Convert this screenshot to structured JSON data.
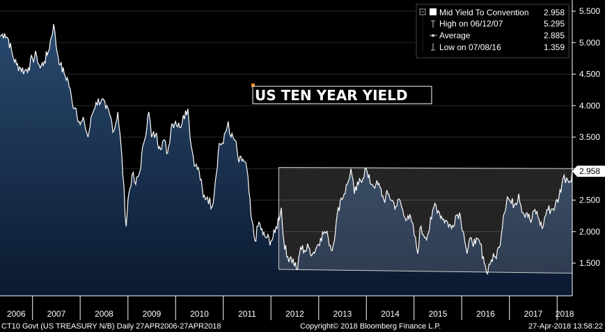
{
  "chart_data": {
    "type": "line",
    "title": "US TEN YEAR YIELD",
    "ylim": [
      1.0,
      5.6
    ],
    "y_ticks": [
      "5.500",
      "5.000",
      "4.500",
      "4.000",
      "3.500",
      "3.000",
      "2.500",
      "2.000",
      "1.500"
    ],
    "last_value_label": "2.958",
    "x_ticks": [
      "2006",
      "2007",
      "2008",
      "2009",
      "2010",
      "2011",
      "2012",
      "2013",
      "2014",
      "2015",
      "2016",
      "2017",
      "2018"
    ],
    "x_range": [
      "2006-04-27",
      "2018-04-27"
    ],
    "series": [
      {
        "name": "Mid Yield To Convention",
        "color": "#ffffff",
        "fill_top": "#2a4a6e",
        "fill_bottom": "#0b1930",
        "x": [
          "2006-04-27",
          "2006-06-01",
          "2006-07-01",
          "2006-08-01",
          "2006-09-01",
          "2006-10-01",
          "2006-11-01",
          "2006-12-01",
          "2007-01-01",
          "2007-02-01",
          "2007-03-01",
          "2007-04-01",
          "2007-05-01",
          "2007-06-12",
          "2007-07-01",
          "2007-08-01",
          "2007-09-01",
          "2007-10-01",
          "2007-11-01",
          "2007-12-01",
          "2008-01-01",
          "2008-02-01",
          "2008-03-01",
          "2008-04-01",
          "2008-05-01",
          "2008-06-15",
          "2008-07-15",
          "2008-08-15",
          "2008-09-15",
          "2008-10-15",
          "2008-11-15",
          "2008-12-18",
          "2009-01-01",
          "2009-02-01",
          "2009-03-01",
          "2009-04-01",
          "2009-05-01",
          "2009-06-10",
          "2009-07-01",
          "2009-08-01",
          "2009-09-01",
          "2009-10-01",
          "2009-11-01",
          "2009-12-01",
          "2010-01-01",
          "2010-02-01",
          "2010-03-01",
          "2010-04-05",
          "2010-05-01",
          "2010-06-01",
          "2010-07-01",
          "2010-08-01",
          "2010-09-01",
          "2010-10-08",
          "2010-11-01",
          "2010-12-01",
          "2011-01-01",
          "2011-02-08",
          "2011-03-01",
          "2011-04-01",
          "2011-05-01",
          "2011-06-01",
          "2011-07-01",
          "2011-08-01",
          "2011-09-01",
          "2011-10-01",
          "2011-11-01",
          "2011-12-01",
          "2012-01-01",
          "2012-02-01",
          "2012-03-20",
          "2012-04-01",
          "2012-05-01",
          "2012-06-01",
          "2012-07-24",
          "2012-08-15",
          "2012-09-15",
          "2012-10-15",
          "2012-11-15",
          "2012-12-15",
          "2013-01-15",
          "2013-02-15",
          "2013-03-15",
          "2013-04-15",
          "2013-05-15",
          "2013-06-15",
          "2013-07-15",
          "2013-08-15",
          "2013-09-05",
          "2013-10-01",
          "2013-11-01",
          "2013-12-31",
          "2014-01-15",
          "2014-02-15",
          "2014-03-15",
          "2014-04-15",
          "2014-05-15",
          "2014-06-15",
          "2014-07-15",
          "2014-08-15",
          "2014-09-15",
          "2014-10-15",
          "2014-11-15",
          "2014-12-15",
          "2015-01-30",
          "2015-02-15",
          "2015-03-15",
          "2015-04-15",
          "2015-05-15",
          "2015-06-10",
          "2015-07-15",
          "2015-08-15",
          "2015-09-15",
          "2015-10-15",
          "2015-11-15",
          "2015-12-15",
          "2016-01-15",
          "2016-02-11",
          "2016-03-15",
          "2016-04-15",
          "2016-05-15",
          "2016-06-15",
          "2016-07-08",
          "2016-08-15",
          "2016-09-15",
          "2016-10-15",
          "2016-11-15",
          "2016-12-15",
          "2017-01-15",
          "2017-02-15",
          "2017-03-13",
          "2017-04-15",
          "2017-05-15",
          "2017-06-15",
          "2017-07-15",
          "2017-08-15",
          "2017-09-08",
          "2017-10-15",
          "2017-11-15",
          "2017-12-15",
          "2018-01-15",
          "2018-02-15",
          "2018-03-15",
          "2018-04-10",
          "2018-04-27"
        ],
        "values": [
          5.1,
          5.15,
          5.05,
          4.8,
          4.65,
          4.6,
          4.55,
          4.6,
          4.75,
          4.8,
          4.6,
          4.7,
          4.85,
          5.295,
          4.95,
          4.65,
          4.5,
          4.4,
          4.05,
          3.95,
          3.7,
          3.75,
          3.5,
          3.85,
          4.05,
          4.1,
          3.95,
          3.85,
          3.6,
          3.9,
          3.2,
          2.08,
          2.5,
          2.9,
          2.75,
          2.95,
          3.4,
          3.9,
          3.5,
          3.55,
          3.35,
          3.45,
          3.25,
          3.7,
          3.75,
          3.65,
          3.85,
          3.95,
          3.35,
          3.05,
          2.95,
          2.55,
          2.55,
          2.4,
          2.8,
          3.4,
          3.4,
          3.75,
          3.5,
          3.45,
          3.1,
          3.15,
          3.0,
          2.25,
          1.85,
          2.15,
          1.95,
          1.9,
          1.85,
          1.98,
          2.38,
          2.0,
          1.6,
          1.6,
          1.4,
          1.75,
          1.7,
          1.75,
          1.65,
          1.75,
          1.9,
          2.0,
          1.9,
          1.7,
          2.15,
          2.5,
          2.6,
          2.8,
          3.0,
          2.6,
          2.75,
          3.0,
          2.85,
          2.75,
          2.75,
          2.7,
          2.5,
          2.6,
          2.5,
          2.4,
          2.5,
          2.25,
          2.25,
          2.15,
          1.65,
          2.05,
          1.95,
          1.95,
          2.2,
          2.45,
          2.3,
          2.2,
          2.15,
          2.05,
          2.25,
          2.3,
          2.0,
          1.65,
          1.9,
          1.8,
          1.85,
          1.6,
          1.359,
          1.55,
          1.6,
          1.75,
          2.25,
          2.55,
          2.45,
          2.45,
          2.6,
          2.3,
          2.3,
          2.15,
          2.35,
          2.2,
          2.05,
          2.35,
          2.35,
          2.4,
          2.55,
          2.85,
          2.85,
          2.8,
          2.958
        ]
      }
    ],
    "channel": {
      "x": [
        "2012-03-01",
        "2018-04-27"
      ],
      "upper": [
        3.02,
        3.0
      ],
      "lower": [
        1.4,
        1.34
      ]
    },
    "legend": {
      "rows": [
        {
          "label": "Mid Yield To Convention",
          "value": "2.958"
        },
        {
          "label": "High on 06/12/07",
          "value": "5.295"
        },
        {
          "label": "Average",
          "value": "2.885"
        },
        {
          "label": "Low on 07/08/16",
          "value": "1.359"
        }
      ]
    },
    "footer": {
      "left": "CT10 Govt (US TREASURY N/B)  Daily 27APR2006-27APR2018",
      "center": "Copyright© 2018 Bloomberg Finance L.P.",
      "right": "27-Apr-2018 13:58:22"
    }
  }
}
